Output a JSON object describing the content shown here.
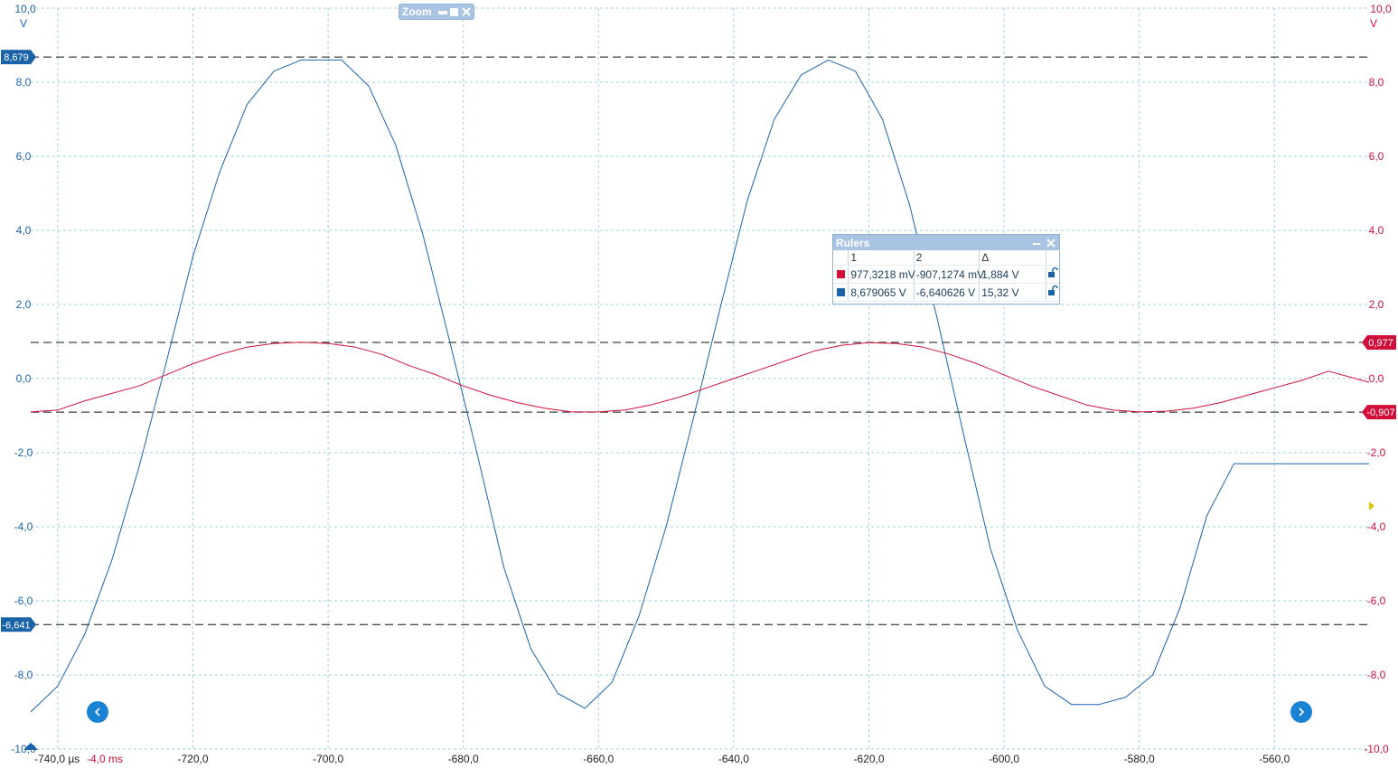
{
  "zoom_toolbar": {
    "title": "Zoom"
  },
  "axes": {
    "left_unit": "V",
    "right_unit": "V",
    "left_ticks": [
      "10,0",
      "8,0",
      "6,0",
      "4,0",
      "2,0",
      "0,0",
      "-2,0",
      "-4,0",
      "-6,0",
      "-8,0",
      "-10,0"
    ],
    "right_ticks": [
      "10,0",
      "8,0",
      "6,0",
      "4,0",
      "2,0",
      "0,0",
      "-2,0",
      "-4,0",
      "-6,0",
      "-8,0",
      "-10,0"
    ],
    "x_first_label": "-740,0 µs",
    "x_ref_label": "-4,0 ms",
    "x_ticks": [
      "-720,0",
      "-700,0",
      "-680,0",
      "-660,0",
      "-640,0",
      "-620,0",
      "-600,0",
      "-580,0",
      "-560,0"
    ]
  },
  "ruler_tags": {
    "blue_high": "8,679",
    "blue_low": "-6,641",
    "red_high": "0,977",
    "red_low": "-0,907"
  },
  "rulers_panel": {
    "title": "Rulers",
    "columns": [
      "1",
      "2",
      "Δ"
    ],
    "rows": [
      {
        "channel": "red",
        "v1": "977,3218 mV",
        "v2": "-907,1274 mV",
        "delta": "1,884 V"
      },
      {
        "channel": "blue",
        "v1": "8,679065 V",
        "v2": "-6,640626 V",
        "delta": "15,32 V"
      }
    ]
  },
  "colors": {
    "channel_blue": "#1a63a8",
    "channel_red": "#d0103a",
    "grid": "#9fd0de",
    "ruler_line": "#111111",
    "panel_header": "#a8c4e2",
    "nav_button": "#1a82d2"
  },
  "chart_data": {
    "type": "line",
    "x_unit": "µs",
    "xlim": [
      -744,
      -546
    ],
    "ylim": [
      -10,
      10
    ],
    "grid": true,
    "series": [
      {
        "channel": "blue",
        "x": [
          -744,
          -740,
          -736,
          -732,
          -728,
          -724,
          -720,
          -716,
          -712,
          -708,
          -704,
          -700,
          -698,
          -694,
          -690,
          -686,
          -682,
          -678,
          -674,
          -670,
          -666,
          -662,
          -658,
          -654,
          -650,
          -646,
          -642,
          -638,
          -634,
          -630,
          -626,
          -622,
          -618,
          -614,
          -610,
          -606,
          -602,
          -598,
          -594,
          -590,
          -586,
          -582,
          -578,
          -574,
          -570,
          -566,
          -563,
          -562,
          -560,
          -556,
          -552,
          -548,
          -546
        ],
        "y": [
          -9.0,
          -8.3,
          -6.9,
          -4.9,
          -2.4,
          0.4,
          3.3,
          5.6,
          7.4,
          8.3,
          8.6,
          8.6,
          8.6,
          7.9,
          6.3,
          3.9,
          1.0,
          -2.0,
          -5.1,
          -7.3,
          -8.5,
          -8.9,
          -8.2,
          -6.4,
          -4.0,
          -1.1,
          1.9,
          4.8,
          7.0,
          8.2,
          8.6,
          8.3,
          7.0,
          4.7,
          1.7,
          -1.5,
          -4.6,
          -6.8,
          -8.3,
          -8.8,
          -8.8,
          -8.6,
          -8.0,
          -6.2,
          -3.7,
          -2.3,
          -2.3,
          -2.3,
          -2.3,
          -2.3,
          -2.3,
          -2.3,
          -2.3
        ]
      },
      {
        "channel": "red",
        "x": [
          -744,
          -740,
          -736,
          -732,
          -728,
          -724,
          -720,
          -716,
          -712,
          -708,
          -704,
          -700,
          -696,
          -692,
          -688,
          -684,
          -680,
          -676,
          -672,
          -668,
          -664,
          -660,
          -656,
          -652,
          -648,
          -644,
          -640,
          -636,
          -632,
          -628,
          -624,
          -620,
          -616,
          -612,
          -608,
          -604,
          -600,
          -596,
          -592,
          -588,
          -584,
          -580,
          -576,
          -572,
          -568,
          -564,
          -560,
          -556,
          -552,
          -548,
          -546
        ],
        "y": [
          -0.9,
          -0.85,
          -0.6,
          -0.4,
          -0.2,
          0.1,
          0.4,
          0.65,
          0.85,
          0.95,
          0.98,
          0.95,
          0.85,
          0.65,
          0.35,
          0.1,
          -0.2,
          -0.45,
          -0.65,
          -0.8,
          -0.9,
          -0.9,
          -0.85,
          -0.7,
          -0.5,
          -0.25,
          0.0,
          0.25,
          0.5,
          0.75,
          0.9,
          0.97,
          0.95,
          0.85,
          0.65,
          0.4,
          0.1,
          -0.2,
          -0.45,
          -0.7,
          -0.85,
          -0.9,
          -0.88,
          -0.8,
          -0.65,
          -0.45,
          -0.25,
          -0.05,
          0.2,
          0.0,
          -0.1
        ]
      }
    ],
    "ruler_levels": {
      "blue": [
        8.679,
        -6.641
      ],
      "red": [
        0.977,
        -0.907
      ]
    }
  }
}
